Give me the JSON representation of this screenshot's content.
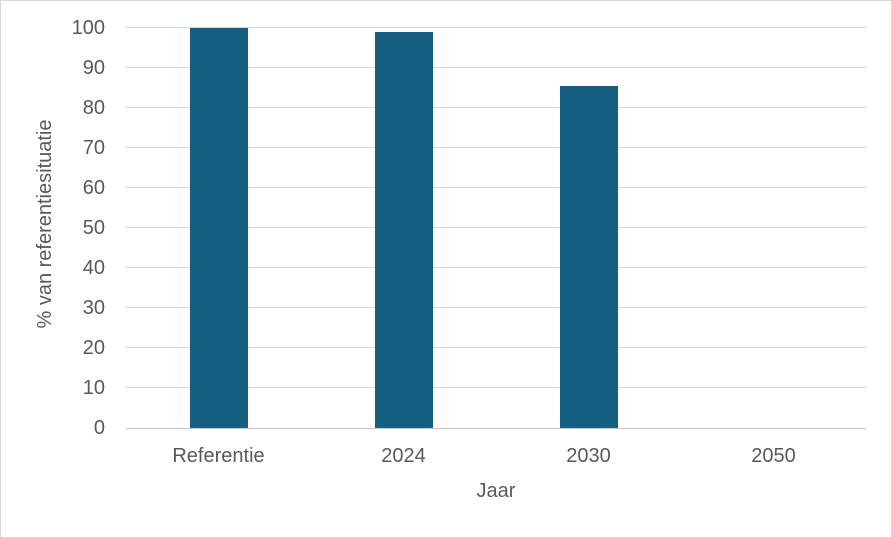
{
  "chart_data": {
    "type": "bar",
    "title": "",
    "categories": [
      "Referentie",
      "2024",
      "2030",
      "2050"
    ],
    "values": [
      100,
      99,
      85.5,
      0
    ],
    "xlabel": "Jaar",
    "ylabel": "% van referentiesituatie",
    "ylim": [
      0,
      100
    ],
    "ytick_step": 10,
    "grid": true,
    "legend_position": "none",
    "colors": {
      "bar": "#156082",
      "gridline": "#d9d9d9",
      "axis_line": "#c6c6c6",
      "text": "#595959",
      "border": "#d8d8d8",
      "background": "#ffffff"
    }
  }
}
